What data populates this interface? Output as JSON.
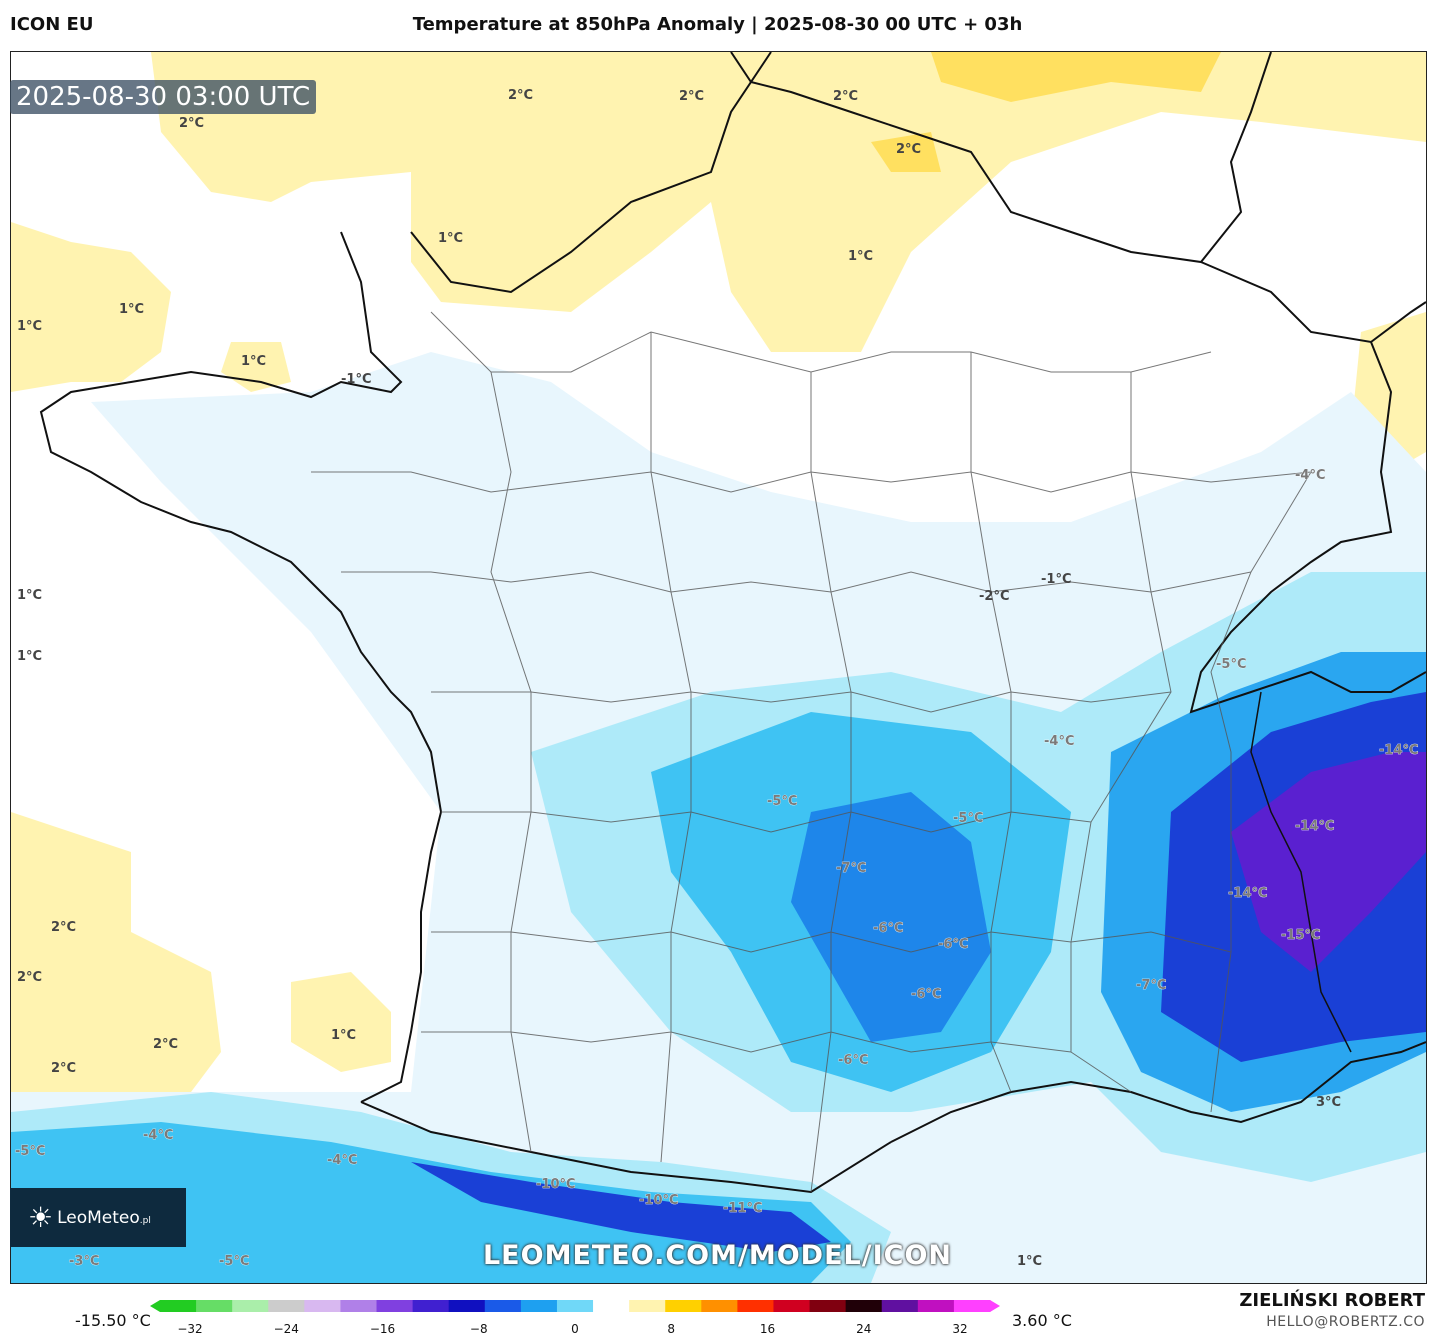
{
  "header": {
    "model": "ICON EU",
    "title": "Temperature at 850hPa Anomaly | 2025-08-30 00 UTC + 03h"
  },
  "map": {
    "timestamp": "2025-08-30 03:00 UTC",
    "watermark": "LEOMETEO.COM/MODEL/ICON",
    "logo_text": "LeoMeteo",
    "logo_suffix": ".pl",
    "labels": [
      "2°C",
      "2°C",
      "2°C",
      "2°C",
      "2°C",
      "1°C",
      "1°C",
      "1°C",
      "1°C",
      "1°C",
      "-1°C",
      "-4°C",
      "-1°C",
      "-2°C",
      "1°C",
      "1°C",
      "-5°C",
      "-4°C",
      "-14°C",
      "-5°C",
      "-5°C",
      "-14°C",
      "-7°C",
      "-14°C",
      "-6°C",
      "-6°C",
      "-15°C",
      "2°C",
      "2°C",
      "-6°C",
      "-7°C",
      "2°C",
      "1°C",
      "2°C",
      "-6°C",
      "3°C",
      "-5°C",
      "-4°C",
      "-4°C",
      "-10°C",
      "-10°C",
      "-11°C",
      "-3°C",
      "-5°C",
      "1°C"
    ]
  },
  "legend": {
    "min_label": "-15.50 °C",
    "max_label": "3.60 °C",
    "ticks": [
      "−32",
      "−24",
      "−16",
      "−8",
      "0",
      "8",
      "16",
      "24",
      "32"
    ],
    "colors": [
      "#22cc22",
      "#66dd66",
      "#aaeeaa",
      "#cccccc",
      "#d8b8f0",
      "#b080e8",
      "#8040e0",
      "#4020d0",
      "#1010c0",
      "#1a5ae8",
      "#1ea0f0",
      "#70d8f8",
      "#ffffff",
      "#fff3b0",
      "#ffd000",
      "#ff9000",
      "#ff3000",
      "#d00020",
      "#800010",
      "#200008",
      "#6010a0",
      "#c010c0",
      "#ff40ff"
    ]
  },
  "footer": {
    "author": "ZIELIŃSKI ROBERT",
    "email": "HELLO@ROBERTZ.CO"
  }
}
